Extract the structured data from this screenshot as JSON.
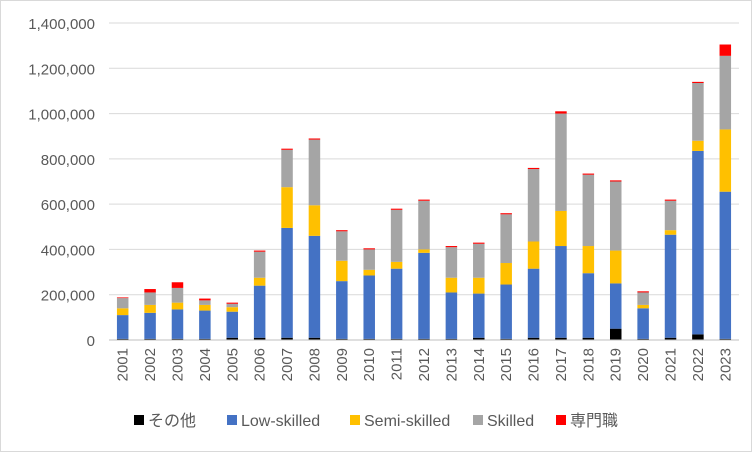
{
  "chart_data": {
    "type": "bar",
    "stacked": true,
    "title": "",
    "xlabel": "",
    "ylabel": "",
    "ylim": [
      0,
      1400000
    ],
    "yticks": [
      0,
      200000,
      400000,
      600000,
      800000,
      1000000,
      1200000,
      1400000
    ],
    "ytick_labels": [
      "0",
      "200,000",
      "400,000",
      "600,000",
      "800,000",
      "1,000,000",
      "1,200,000",
      "1,400,000"
    ],
    "grid": "horizontal",
    "legend_position": "bottom",
    "categories": [
      "2001",
      "2002",
      "2003",
      "2004",
      "2005",
      "2006",
      "2007",
      "2008",
      "2009",
      "2010",
      "2011",
      "2012",
      "2013",
      "2014",
      "2015",
      "2016",
      "2017",
      "2018",
      "2019",
      "2020",
      "2021",
      "2022",
      "2023"
    ],
    "series": [
      {
        "name": "その他",
        "color": "#000000",
        "values": [
          5000,
          5000,
          5000,
          5000,
          10000,
          10000,
          10000,
          10000,
          5000,
          5000,
          5000,
          5000,
          5000,
          10000,
          5000,
          10000,
          10000,
          10000,
          50000,
          5000,
          10000,
          25000,
          5000
        ]
      },
      {
        "name": "Low-skilled",
        "color": "#4472c4",
        "values": [
          105000,
          115000,
          130000,
          125000,
          115000,
          230000,
          485000,
          450000,
          255000,
          280000,
          310000,
          380000,
          205000,
          195000,
          240000,
          305000,
          405000,
          285000,
          200000,
          135000,
          455000,
          810000,
          650000
        ]
      },
      {
        "name": "Semi-skilled",
        "color": "#ffc000",
        "values": [
          30000,
          35000,
          30000,
          25000,
          20000,
          35000,
          180000,
          135000,
          90000,
          25000,
          30000,
          15000,
          65000,
          70000,
          95000,
          120000,
          155000,
          120000,
          145000,
          15000,
          20000,
          45000,
          275000
        ]
      },
      {
        "name": "Skilled",
        "color": "#a5a5a5",
        "values": [
          45000,
          55000,
          65000,
          20000,
          15000,
          115000,
          165000,
          290000,
          130000,
          90000,
          230000,
          215000,
          135000,
          150000,
          215000,
          320000,
          430000,
          315000,
          305000,
          55000,
          130000,
          255000,
          325000
        ]
      },
      {
        "name": "専門職",
        "color": "#ff0000",
        "values": [
          3000,
          15000,
          25000,
          8000,
          5000,
          5000,
          5000,
          5000,
          5000,
          5000,
          5000,
          5000,
          5000,
          5000,
          5000,
          5000,
          10000,
          5000,
          5000,
          5000,
          5000,
          5000,
          50000
        ]
      }
    ]
  }
}
